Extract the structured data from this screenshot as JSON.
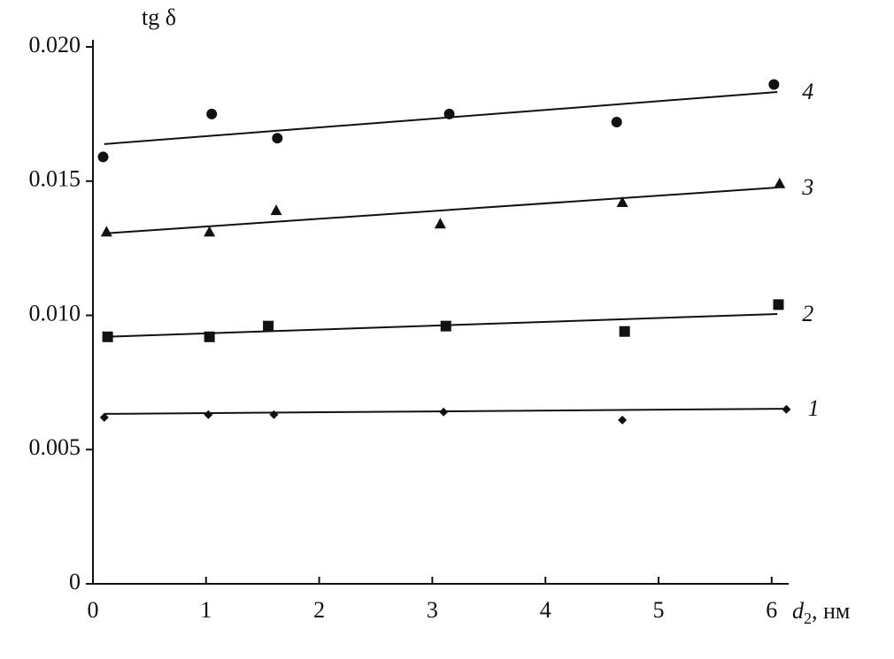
{
  "chart_data": {
    "type": "scatter",
    "ylabel": "tg δ",
    "xlabel": {
      "symbol": "d",
      "subscript": "2",
      "unit": ", нм"
    },
    "xlim": [
      0,
      6.15
    ],
    "ylim": [
      0,
      0.02
    ],
    "xticks": [
      0,
      1,
      2,
      3,
      4,
      5,
      6
    ],
    "yticks": [
      0,
      0.005,
      {
        "value": 0.01,
        "label": "0.010"
      },
      0.015,
      {
        "value": 0.02,
        "label": "0.020"
      }
    ],
    "series": [
      {
        "name": "1",
        "color": "#111111",
        "marker": "diamond",
        "x": [
          0.1,
          1.02,
          1.6,
          3.1,
          4.68,
          6.13
        ],
        "values": [
          0.0062,
          0.0063,
          0.0063,
          0.0064,
          0.0061,
          0.0065
        ],
        "trend": {
          "x": [
            0.1,
            6.1
          ],
          "values": [
            0.00633,
            0.00652
          ]
        }
      },
      {
        "name": "2",
        "color": "#111111",
        "marker": "square",
        "x": [
          0.13,
          1.03,
          1.55,
          3.12,
          4.7,
          6.06
        ],
        "values": [
          0.0092,
          0.0092,
          0.0096,
          0.0096,
          0.0094,
          0.0104
        ],
        "trend": {
          "x": [
            0.1,
            6.05
          ],
          "values": [
            0.0092,
            0.01005
          ]
        }
      },
      {
        "name": "3",
        "color": "#111111",
        "marker": "triangle",
        "x": [
          0.12,
          1.03,
          1.62,
          3.07,
          4.68,
          6.07
        ],
        "values": [
          0.0131,
          0.0131,
          0.0139,
          0.0134,
          0.0142,
          0.0149
        ],
        "trend": {
          "x": [
            0.1,
            6.05
          ],
          "values": [
            0.01305,
            0.01476
          ]
        }
      },
      {
        "name": "4",
        "color": "#111111",
        "marker": "circle",
        "x": [
          0.09,
          1.05,
          1.63,
          3.15,
          4.63,
          6.02
        ],
        "values": [
          0.0159,
          0.0175,
          0.0166,
          0.0175,
          0.0172,
          0.0186
        ],
        "trend": {
          "x": [
            0.1,
            6.05
          ],
          "values": [
            0.01638,
            0.01832
          ]
        }
      }
    ]
  }
}
